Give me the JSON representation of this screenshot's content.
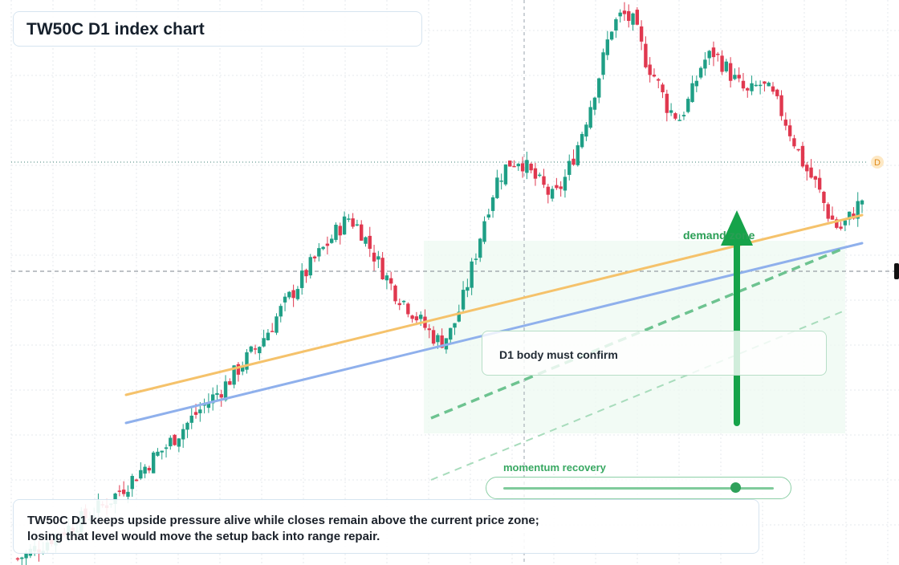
{
  "header": {
    "title": "TW50C D1 index chart"
  },
  "annotations": {
    "demand_zone_label": "demand zone",
    "confirm_note": "D1 body must confirm",
    "momentum_label": "momentum recovery",
    "price_tag_letter": "D"
  },
  "momentum": {
    "level": 0.86
  },
  "summary": {
    "line1": "TW50C D1 keeps upside pressure alive while closes remain above the current price zone;",
    "line2": "losing that level would move the setup back into range repair."
  },
  "colors": {
    "up": "#1f9f86",
    "down": "#e0384f",
    "resistance_line": "#f5c26b",
    "trend_line": "#8fb0ec",
    "support_dashed": "#5fbe86",
    "arrow": "#16a34a",
    "zone_fill": "#e9f7ee"
  },
  "chart_data": {
    "type": "candlestick",
    "title": "TW50C D1 index chart",
    "timeframe": "D1",
    "grid": true,
    "close_trend": [
      8,
      16,
      25,
      35,
      44,
      53,
      62,
      72,
      82,
      96,
      110,
      124,
      139,
      152,
      168,
      184,
      200,
      214,
      228,
      246,
      264,
      280,
      302,
      326,
      348,
      370,
      392,
      410,
      430,
      446,
      432,
      404,
      378,
      352,
      336,
      318,
      300,
      286,
      300,
      340,
      392,
      450,
      494,
      516,
      522,
      502,
      486,
      470,
      498,
      536,
      582,
      632,
      690,
      708,
      696,
      650,
      622,
      586,
      574,
      602,
      646,
      658,
      640,
      620,
      604,
      618,
      606,
      580,
      546,
      510,
      488,
      452,
      430,
      448,
      470
    ]
  }
}
